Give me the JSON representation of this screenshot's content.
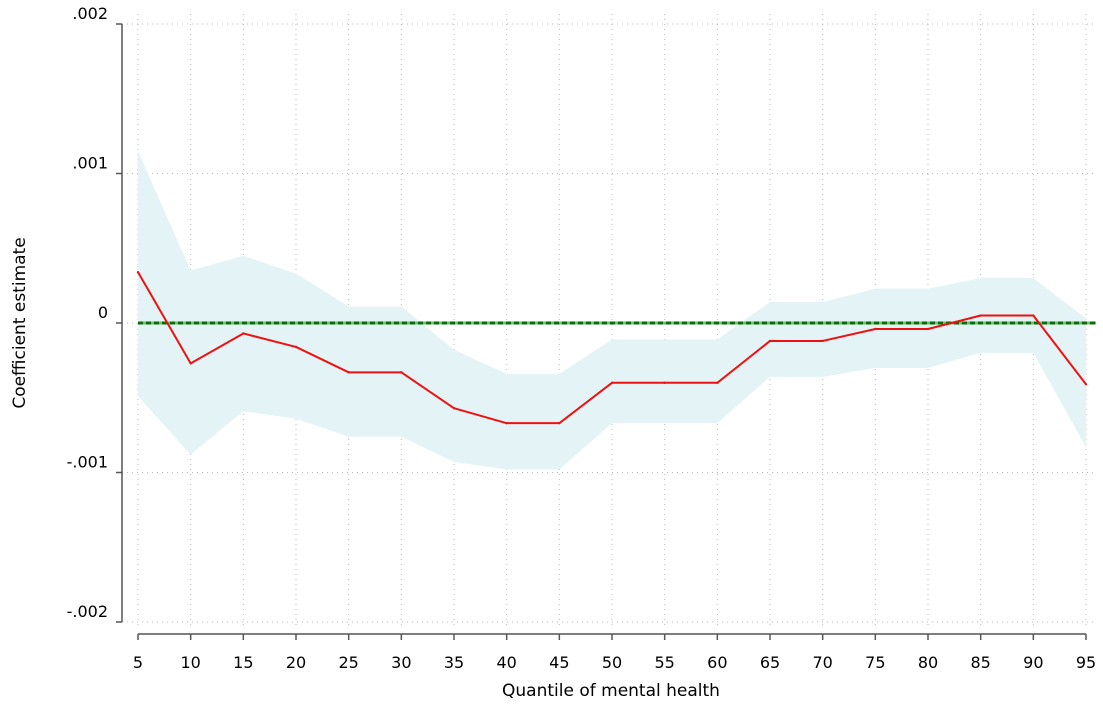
{
  "chart_data": {
    "type": "line",
    "title": "",
    "xlabel": "Quantile of mental health",
    "ylabel": "Coefficient estimate",
    "x": [
      5,
      10,
      15,
      20,
      25,
      30,
      35,
      40,
      45,
      50,
      55,
      60,
      65,
      70,
      75,
      80,
      85,
      90,
      95
    ],
    "x_ticks": [
      "5",
      "10",
      "15",
      "20",
      "25",
      "30",
      "35",
      "40",
      "45",
      "50",
      "55",
      "60",
      "65",
      "70",
      "75",
      "80",
      "85",
      "90",
      "95"
    ],
    "y_ticks": [
      {
        "value": 0.002,
        "label": ".002"
      },
      {
        "value": 0.001,
        "label": ".001"
      },
      {
        "value": 0,
        "label": "0"
      },
      {
        "value": -0.001,
        "label": "-.001"
      },
      {
        "value": -0.002,
        "label": "-.002"
      }
    ],
    "xlim": [
      5,
      95
    ],
    "ylim": [
      -0.002,
      0.002
    ],
    "grid": true,
    "series": [
      {
        "values": [
          0.00034,
          -0.00027,
          -7e-05,
          -0.00016,
          -0.00033,
          -0.00033,
          -0.00057,
          -0.00067,
          -0.00067,
          -0.0004,
          -0.0004,
          -0.0004,
          -0.00012,
          -0.00012,
          -4e-05,
          -4e-05,
          5e-05,
          5e-05,
          -0.00041
        ],
        "color": "#ee1111"
      }
    ],
    "confidence_band": {
      "lower": [
        -0.00049,
        -0.00088,
        -0.00059,
        -0.00064,
        -0.00076,
        -0.00076,
        -0.00093,
        -0.00098,
        -0.00098,
        -0.00067,
        -0.00067,
        -0.00067,
        -0.00036,
        -0.00036,
        -0.0003,
        -0.0003,
        -0.0002,
        -0.0002,
        -0.00083
      ],
      "upper": [
        0.00115,
        0.00035,
        0.00045,
        0.00033,
        0.00011,
        0.00011,
        -0.00018,
        -0.00034,
        -0.00034,
        -0.00011,
        -0.00011,
        -0.00011,
        0.00014,
        0.00014,
        0.00023,
        0.00023,
        0.0003,
        0.0003,
        3e-05
      ],
      "color": "#e4f3f6"
    },
    "reference_line": {
      "value": 0,
      "colors": [
        "#0a6e0a",
        "#6cbf6c"
      ]
    }
  }
}
